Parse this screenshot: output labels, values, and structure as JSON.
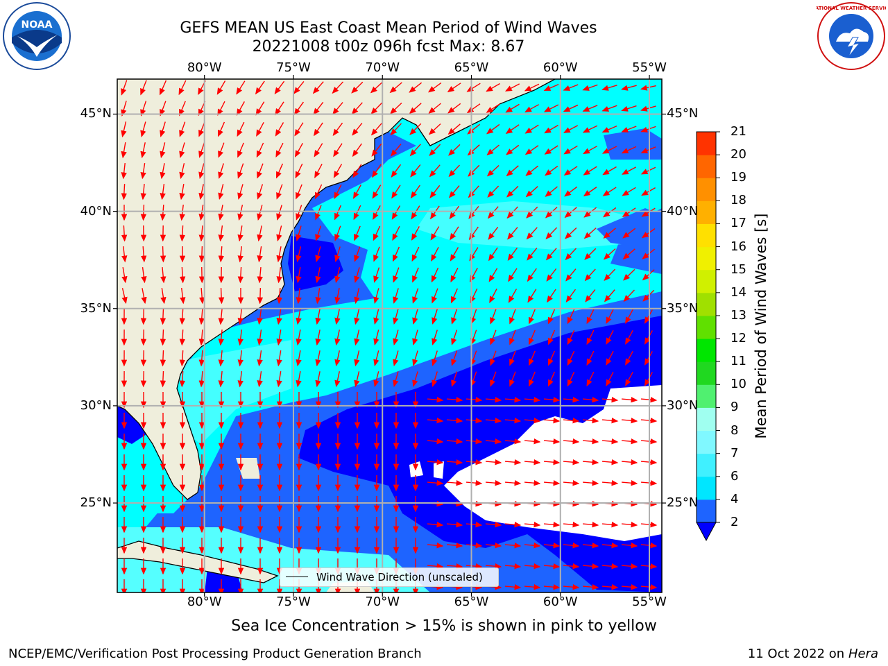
{
  "title": {
    "line1": "GEFS MEAN US East Coast Mean Period of Wind Waves",
    "line2": "20221008 t00z 096h fcst   Max: 8.67"
  },
  "logos": {
    "left": "noaa-logo",
    "left_text": "NOAA",
    "right": "nws-logo",
    "right_text": "NATIONAL WEATHER SERVICE"
  },
  "axes": {
    "x_ticks": [
      "80°W",
      "75°W",
      "70°W",
      "65°W",
      "60°W",
      "55°W"
    ],
    "x_values": [
      -80,
      -75,
      -70,
      -65,
      -60,
      -55
    ],
    "y_ticks": [
      "45°N",
      "40°N",
      "35°N",
      "30°N",
      "25°N"
    ],
    "y_values": [
      45,
      40,
      35,
      30,
      25
    ],
    "lon_range": [
      -84.9,
      -54.3
    ],
    "lat_range": [
      20.4,
      46.8
    ],
    "grid": true
  },
  "legend": {
    "label": "Wind Wave Direction (unscaled)",
    "placement": "bottom-center"
  },
  "colorbar": {
    "label": "Mean Period of Wind Waves [s]",
    "ticks": [
      "2",
      "4",
      "6",
      "7",
      "8",
      "9",
      "10",
      "11",
      "12",
      "13",
      "14",
      "15",
      "16",
      "17",
      "18",
      "19",
      "20",
      "21"
    ],
    "colors": [
      "#1e64ff",
      "#00e6ff",
      "#40f0ff",
      "#80f8ff",
      "#a0fff0",
      "#50f070",
      "#20d820",
      "#00e600",
      "#60e000",
      "#a0e000",
      "#d0f000",
      "#f0f000",
      "#ffe000",
      "#ffb000",
      "#ff9000",
      "#ff6600",
      "#ff3300",
      "#ff0000"
    ],
    "under_color": "#0000ff",
    "extend": "min"
  },
  "map": {
    "land_color": "#efeedc",
    "colors": {
      "deep_blue": "#0000ff",
      "mid_blue": "#1e64ff",
      "cyan": "#00ffff",
      "light_cyan": "#55ffff",
      "arrow": "#ff0000",
      "missing": "#ffffff"
    }
  },
  "note": "Sea Ice Concentration > 15% is shown in pink to yellow",
  "footer": {
    "left": "NCEP/EMC/Verification Post Processing Product Generation Branch",
    "right_prefix": "11 Oct 2022 on ",
    "right_machine": "Hera"
  }
}
